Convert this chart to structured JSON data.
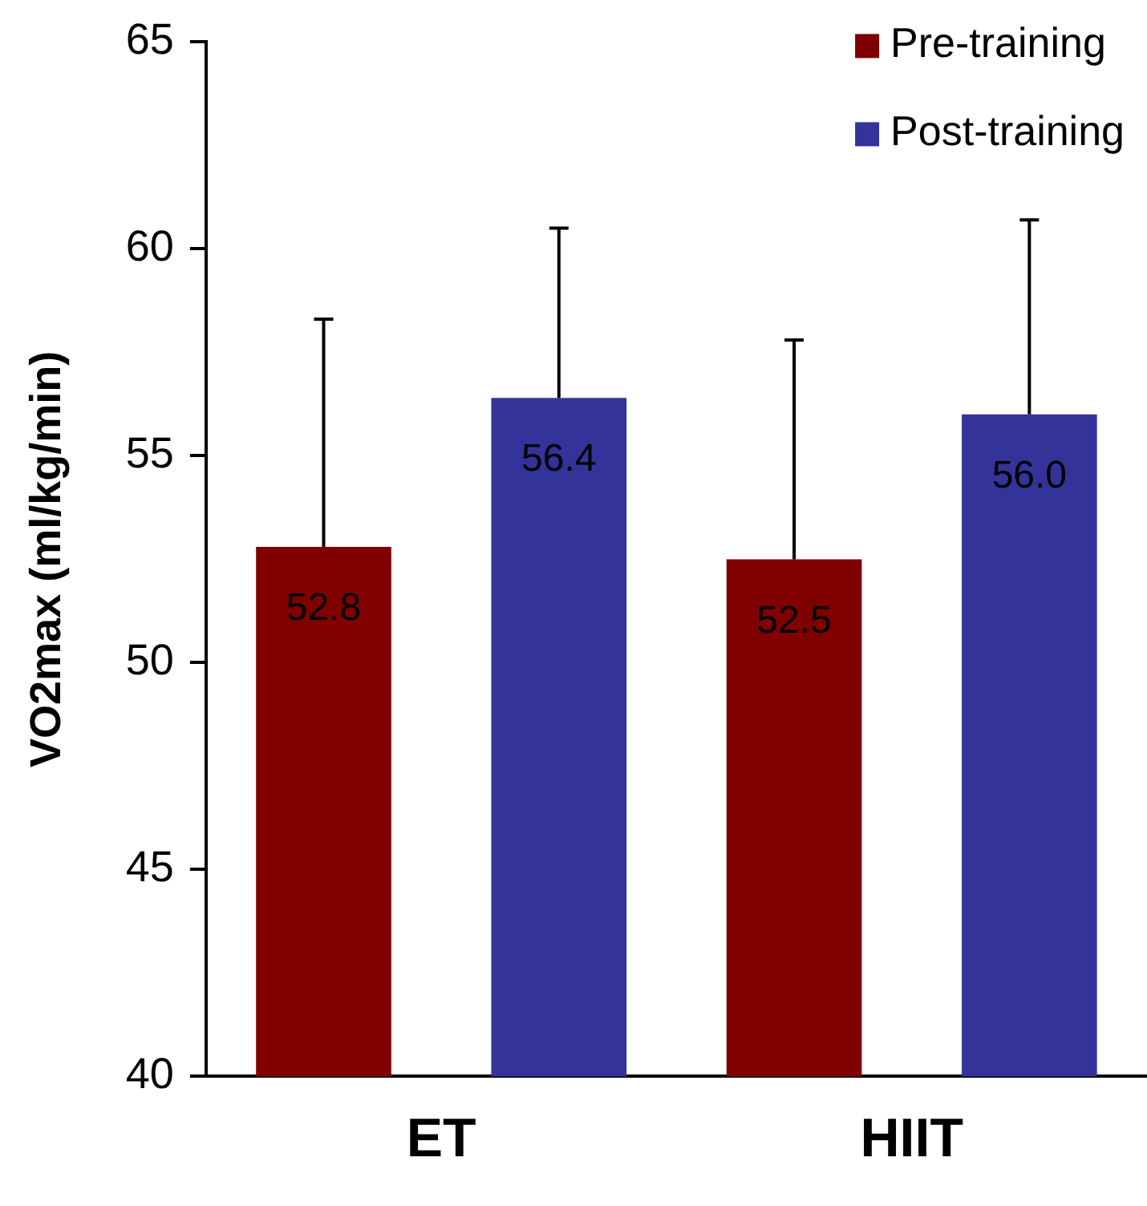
{
  "chart_data": {
    "type": "bar",
    "ylabel": "VO2max (ml/kg/min)",
    "categories": [
      "ET",
      "HIIT"
    ],
    "series": [
      {
        "name": "Pre-training",
        "color": "#800000",
        "values": [
          52.8,
          52.5
        ],
        "value_labels": [
          "52.8",
          "52.5"
        ],
        "errors": [
          [
            52.8,
            58.3
          ],
          [
            52.5,
            57.8
          ]
        ]
      },
      {
        "name": "Post-training",
        "color": "#333399",
        "values": [
          56.4,
          56.0
        ],
        "value_labels": [
          "56.4",
          "56.0"
        ],
        "errors": [
          [
            56.4,
            60.5
          ],
          [
            56.0,
            60.7
          ]
        ]
      }
    ],
    "ylim": [
      40,
      65
    ],
    "yticks": [
      40,
      45,
      50,
      55,
      60,
      65
    ],
    "grid": false,
    "legend": "top right"
  }
}
